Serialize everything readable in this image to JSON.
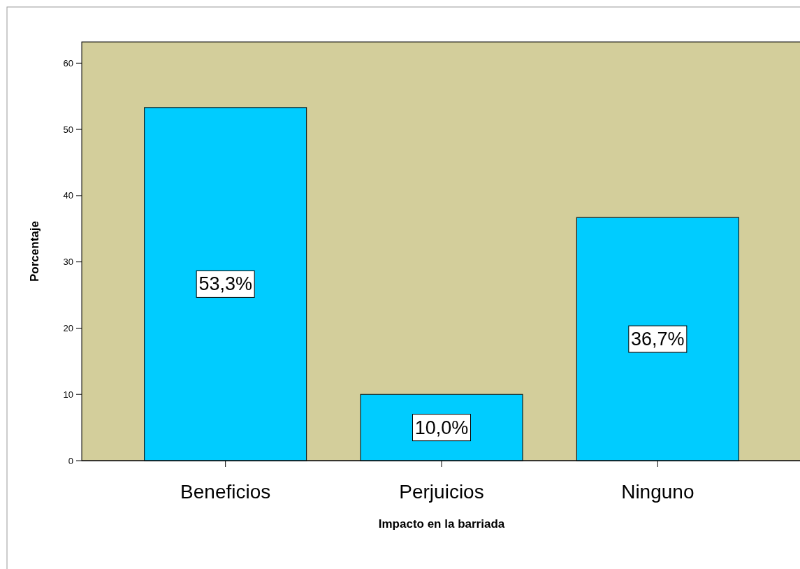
{
  "chart_data": {
    "type": "bar",
    "xlabel": "Impacto en la barriada",
    "ylabel": "Porcentaje",
    "categories": [
      "Beneficios",
      "Perjuicios",
      "Ninguno"
    ],
    "values": [
      53.3,
      10.0,
      36.7
    ],
    "color": "#00ccff",
    "value_labels": [
      "53,3%",
      "10,0%",
      "36,7%"
    ],
    "ylim": [
      0,
      63.2
    ],
    "yticks": [
      0,
      10,
      20,
      30,
      40,
      50,
      60
    ],
    "grid": false
  }
}
